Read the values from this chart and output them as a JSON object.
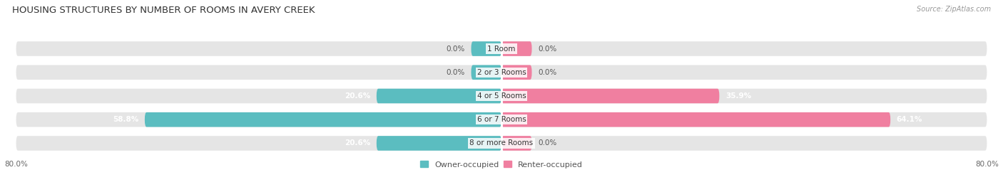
{
  "title": "HOUSING STRUCTURES BY NUMBER OF ROOMS IN AVERY CREEK",
  "source": "Source: ZipAtlas.com",
  "categories": [
    "1 Room",
    "2 or 3 Rooms",
    "4 or 5 Rooms",
    "6 or 7 Rooms",
    "8 or more Rooms"
  ],
  "owner_values": [
    0.0,
    0.0,
    20.6,
    58.8,
    20.6
  ],
  "renter_values": [
    0.0,
    0.0,
    35.9,
    64.1,
    0.0
  ],
  "owner_color": "#5bbdc0",
  "renter_color": "#f07fa0",
  "bar_bg_color": "#e5e5e5",
  "bar_height": 0.62,
  "axis_min": -80.0,
  "axis_max": 80.0,
  "stub_size": 5.0,
  "figsize": [
    14.06,
    2.7
  ],
  "dpi": 100,
  "title_fontsize": 9.5,
  "label_fontsize": 7.5,
  "category_fontsize": 7.5,
  "legend_fontsize": 8,
  "bg_color": "#f7f7f7"
}
